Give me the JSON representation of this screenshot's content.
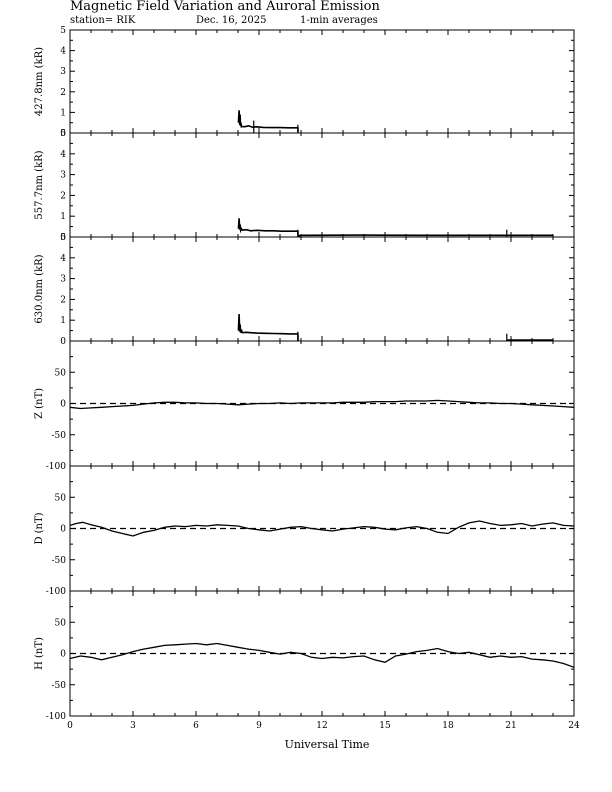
{
  "header": {
    "title": "Magnetic Field Variation and Auroral Emission",
    "station": "station= RIK",
    "date": "Dec. 16, 2025",
    "averaging": "1-min averages"
  },
  "chart_data": {
    "type": "line",
    "xlabel": "Universal Time",
    "xlim": [
      0,
      24
    ],
    "xticks": [
      0,
      3,
      6,
      9,
      12,
      15,
      18,
      21,
      24
    ],
    "panels": [
      {
        "id": "427",
        "ylabel": "427.8nm (kR)",
        "ylim": [
          0,
          5
        ],
        "yticks": [
          0,
          1,
          2,
          3,
          4,
          5
        ],
        "zero_line": false,
        "series": [
          {
            "x": [
              8.02,
              8.05,
              8.08,
              8.1,
              8.12,
              8.14,
              8.16,
              8.2,
              8.3,
              8.5,
              8.7,
              8.9,
              9.2,
              9.6,
              10.0,
              10.4,
              10.85,
              10.86
            ],
            "y": [
              0.5,
              1.1,
              0.4,
              0.9,
              0.35,
              0.5,
              0.3,
              0.32,
              0.3,
              0.35,
              0.28,
              0.3,
              0.27,
              0.26,
              0.26,
              0.25,
              0.25,
              0.05
            ]
          }
        ],
        "spikes": [
          {
            "x": 8.75,
            "y": 0.6
          },
          {
            "x": 10.85,
            "y": 0.4
          }
        ]
      },
      {
        "id": "557",
        "ylabel": "557.7nm (kR)",
        "ylim": [
          0,
          5
        ],
        "yticks": [
          0,
          1,
          2,
          3,
          4,
          5
        ],
        "zero_line": false,
        "series": [
          {
            "x": [
              8.02,
              8.05,
              8.08,
              8.1,
              8.13,
              8.16,
              8.2,
              8.4,
              8.6,
              8.9,
              9.3,
              9.7,
              10.1,
              10.5,
              10.85,
              10.86,
              11.0,
              14.0,
              17.0,
              20.0,
              23.0
            ],
            "y": [
              0.4,
              0.9,
              0.35,
              0.6,
              0.32,
              0.4,
              0.33,
              0.35,
              0.3,
              0.32,
              0.3,
              0.3,
              0.28,
              0.28,
              0.28,
              0.05,
              0.08,
              0.09,
              0.08,
              0.08,
              0.08
            ]
          }
        ],
        "spikes": [
          {
            "x": 10.85,
            "y": 0.35
          },
          {
            "x": 20.8,
            "y": 0.35
          }
        ]
      },
      {
        "id": "630",
        "ylabel": "630.0nm (kR)",
        "ylim": [
          0,
          5
        ],
        "yticks": [
          0,
          1,
          2,
          3,
          4,
          5
        ],
        "zero_line": false,
        "series": [
          {
            "x": [
              8.02,
              8.05,
              8.08,
              8.1,
              8.13,
              8.16,
              8.2,
              8.4,
              8.6,
              8.9,
              9.3,
              9.7,
              10.1,
              10.5,
              10.85,
              10.86
            ],
            "y": [
              0.5,
              1.3,
              0.45,
              0.8,
              0.4,
              0.55,
              0.4,
              0.42,
              0.4,
              0.38,
              0.37,
              0.36,
              0.35,
              0.34,
              0.34,
              0.02
            ]
          },
          {
            "x": [
              20.8,
              21.5,
              22.5,
              23.0
            ],
            "y": [
              0.05,
              0.05,
              0.05,
              0.05
            ]
          }
        ],
        "spikes": [
          {
            "x": 10.85,
            "y": 0.45
          },
          {
            "x": 20.8,
            "y": 0.35
          }
        ]
      },
      {
        "id": "Z",
        "ylabel": "Z (nT)",
        "ylim": [
          -100,
          100
        ],
        "yticks": [
          -100,
          -50,
          0,
          50
        ],
        "zero_line": true,
        "series": [
          {
            "x": [
              0,
              0.5,
              1,
              1.5,
              2,
              2.5,
              3,
              3.5,
              4,
              4.5,
              5,
              5.5,
              6,
              6.5,
              7,
              7.5,
              8,
              8.5,
              9,
              9.5,
              10,
              10.5,
              11,
              11.5,
              12,
              12.5,
              13,
              13.5,
              14,
              14.5,
              15,
              15.5,
              16,
              16.5,
              17,
              17.5,
              18,
              18.5,
              19,
              19.5,
              20,
              20.5,
              21,
              21.5,
              22,
              22.5,
              23,
              23.5,
              24
            ],
            "y": [
              -6,
              -8,
              -7,
              -6,
              -5,
              -4,
              -3,
              -1,
              1,
              2,
              2,
              1,
              1,
              0,
              0,
              -1,
              -2,
              -1,
              0,
              0,
              1,
              0,
              1,
              1,
              1,
              1,
              2,
              2,
              2,
              3,
              3,
              3,
              4,
              4,
              4,
              5,
              4,
              3,
              2,
              1,
              1,
              0,
              0,
              -1,
              -2,
              -3,
              -4,
              -5,
              -6
            ]
          }
        ]
      },
      {
        "id": "D",
        "ylabel": "D (nT)",
        "ylim": [
          -100,
          100
        ],
        "yticks": [
          -100,
          -50,
          0,
          50
        ],
        "zero_line": true,
        "series": [
          {
            "x": [
              0,
              0.3,
              0.6,
              1,
              1.5,
              2,
              2.5,
              3,
              3.5,
              4,
              4.5,
              5,
              5.5,
              6,
              6.5,
              7,
              7.5,
              8,
              8.5,
              9,
              9.5,
              10,
              10.5,
              11,
              11.5,
              12,
              12.5,
              13,
              13.5,
              14,
              14.5,
              15,
              15.5,
              16,
              16.5,
              17,
              17.5,
              18,
              18.5,
              19,
              19.5,
              20,
              20.5,
              21,
              21.5,
              22,
              22.5,
              23,
              23.5,
              24
            ],
            "y": [
              5,
              8,
              10,
              6,
              2,
              -4,
              -8,
              -12,
              -6,
              -3,
              2,
              4,
              3,
              5,
              4,
              6,
              5,
              4,
              0,
              -2,
              -4,
              -1,
              2,
              3,
              0,
              -2,
              -4,
              -1,
              1,
              3,
              2,
              -1,
              -2,
              1,
              3,
              0,
              -6,
              -8,
              2,
              9,
              12,
              8,
              5,
              6,
              8,
              4,
              7,
              9,
              5,
              4
            ]
          }
        ]
      },
      {
        "id": "H",
        "ylabel": "H (nT)",
        "ylim": [
          -100,
          100
        ],
        "yticks": [
          -100,
          -50,
          0,
          50
        ],
        "zero_line": true,
        "series": [
          {
            "x": [
              0,
              0.5,
              1,
              1.5,
              2,
              2.5,
              3,
              3.5,
              4,
              4.5,
              5,
              5.5,
              6,
              6.5,
              7,
              7.5,
              8,
              8.5,
              9,
              9.5,
              10,
              10.5,
              11,
              11.5,
              12,
              12.5,
              13,
              13.5,
              14,
              14.5,
              15,
              15.5,
              16,
              16.5,
              17,
              17.5,
              18,
              18.5,
              19,
              19.5,
              20,
              20.5,
              21,
              21.5,
              22,
              22.5,
              23,
              23.5,
              24
            ],
            "y": [
              -8,
              -4,
              -6,
              -10,
              -6,
              -2,
              3,
              7,
              10,
              13,
              14,
              15,
              16,
              14,
              16,
              13,
              10,
              7,
              5,
              2,
              -1,
              2,
              0,
              -6,
              -8,
              -6,
              -7,
              -5,
              -4,
              -10,
              -14,
              -4,
              -1,
              3,
              5,
              8,
              3,
              0,
              2,
              -2,
              -6,
              -4,
              -6,
              -5,
              -9,
              -10,
              -12,
              -16,
              -22
            ]
          }
        ]
      }
    ]
  }
}
